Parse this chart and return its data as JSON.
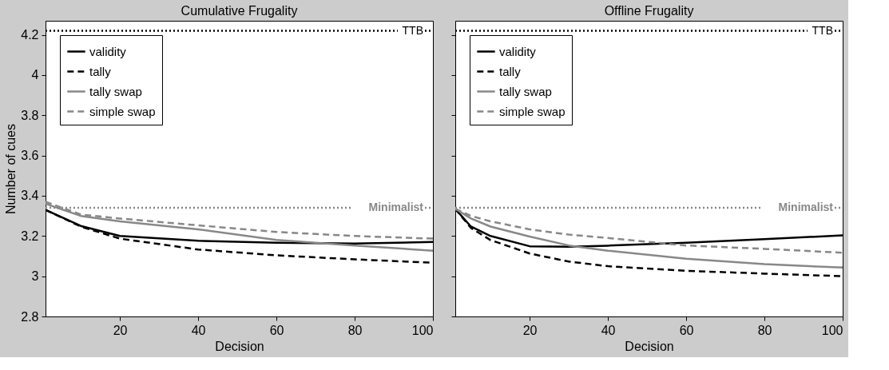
{
  "chart_data": [
    {
      "type": "line",
      "title": "Cumulative Frugality",
      "xlabel": "Decision",
      "ylabel": "Number of cues",
      "xlim": [
        1,
        100
      ],
      "ylim": [
        2.8,
        4.27
      ],
      "xticks": [
        20,
        40,
        60,
        80,
        100
      ],
      "yticks": [
        2.8,
        3,
        3.2,
        3.4,
        3.6,
        3.8,
        4,
        4.2
      ],
      "grid": false,
      "legend": "top left",
      "series": [
        {
          "name": "validity",
          "color": "#000000",
          "line_style": "solid",
          "x": [
            1,
            10,
            20,
            40,
            60,
            80,
            100
          ],
          "values": [
            3.33,
            3.25,
            3.2,
            3.176,
            3.167,
            3.163,
            3.17
          ]
        },
        {
          "name": "tally",
          "color": "#000000",
          "line_style": "dashed",
          "x": [
            1,
            10,
            20,
            40,
            60,
            80,
            100
          ],
          "values": [
            3.33,
            3.247,
            3.187,
            3.133,
            3.104,
            3.084,
            3.067
          ]
        },
        {
          "name": "tally swap",
          "color": "#888888",
          "line_style": "solid",
          "x": [
            1,
            10,
            20,
            40,
            60,
            80,
            100
          ],
          "values": [
            3.36,
            3.3,
            3.273,
            3.233,
            3.18,
            3.153,
            3.127
          ]
        },
        {
          "name": "simple swap",
          "color": "#888888",
          "line_style": "dashed",
          "x": [
            1,
            10,
            20,
            40,
            60,
            80,
            100
          ],
          "values": [
            3.37,
            3.307,
            3.287,
            3.253,
            3.22,
            3.2,
            3.187
          ]
        }
      ],
      "ref_lines": [
        {
          "axis": "y",
          "value": 4.22,
          "label": "TTB",
          "color": "#000000",
          "line_style": "dotted"
        },
        {
          "axis": "y",
          "value": 3.34,
          "label": "Minimalist",
          "color": "#888888",
          "line_style": "dotted"
        }
      ]
    },
    {
      "type": "line",
      "title": "Offline Frugality",
      "xlabel": "Decision",
      "xlim": [
        1,
        100
      ],
      "ylim": [
        2.8,
        4.27
      ],
      "xticks": [
        20,
        40,
        60,
        80,
        100
      ],
      "yticks": [
        2.8,
        3,
        3.2,
        3.4,
        3.6,
        3.8,
        4,
        4.2
      ],
      "tick_labels": "x",
      "grid": false,
      "legend": "top left",
      "series": [
        {
          "name": "validity",
          "color": "#000000",
          "line_style": "solid",
          "x": [
            1,
            5,
            10,
            20,
            30,
            40,
            60,
            80,
            100
          ],
          "values": [
            3.335,
            3.247,
            3.2,
            3.149,
            3.147,
            3.152,
            3.167,
            3.184,
            3.203
          ]
        },
        {
          "name": "tally",
          "color": "#000000",
          "line_style": "dashed",
          "x": [
            1,
            5,
            10,
            20,
            30,
            40,
            60,
            80,
            100
          ],
          "values": [
            3.335,
            3.24,
            3.18,
            3.113,
            3.073,
            3.05,
            3.027,
            3.013,
            3.0
          ]
        },
        {
          "name": "tally swap",
          "color": "#888888",
          "line_style": "solid",
          "x": [
            1,
            5,
            10,
            20,
            30,
            40,
            60,
            80,
            100
          ],
          "values": [
            3.335,
            3.287,
            3.247,
            3.197,
            3.153,
            3.127,
            3.087,
            3.06,
            3.043
          ]
        },
        {
          "name": "simple swap",
          "color": "#888888",
          "line_style": "dashed",
          "x": [
            1,
            5,
            10,
            20,
            30,
            40,
            60,
            80,
            100
          ],
          "values": [
            3.335,
            3.3,
            3.273,
            3.233,
            3.207,
            3.19,
            3.153,
            3.136,
            3.117
          ]
        }
      ],
      "ref_lines": [
        {
          "axis": "y",
          "value": 4.22,
          "label": "TTB",
          "color": "#000000",
          "line_style": "dotted"
        },
        {
          "axis": "y",
          "value": 3.34,
          "label": "Minimalist",
          "color": "#888888",
          "line_style": "dotted"
        }
      ]
    }
  ]
}
